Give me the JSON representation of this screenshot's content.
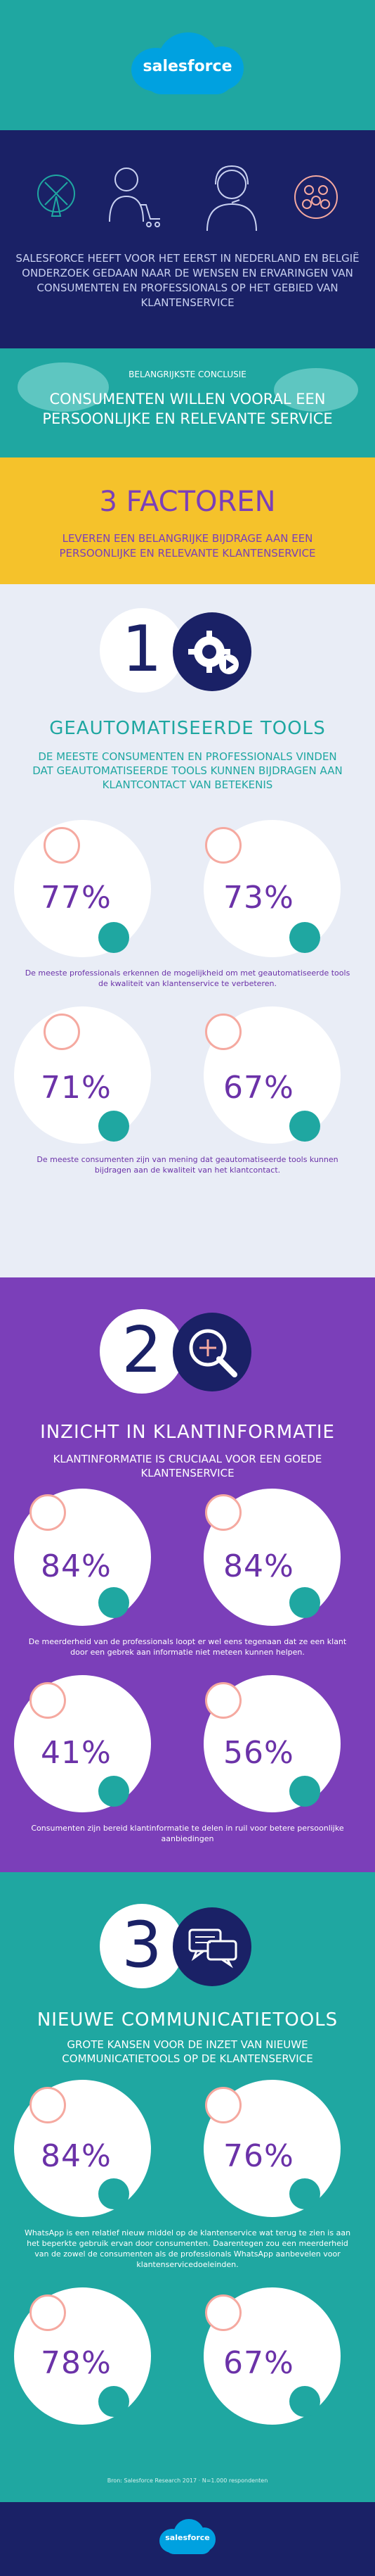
{
  "brand": "salesforce",
  "intro": {
    "text": "SALESFORCE HEEFT VOOR HET EERST IN NEDERLAND EN BELGIË ONDERZOEK GEDAAN NAAR DE WENSEN EN ERVARINGEN VAN CONSUMENTEN EN PROFESSIONALS OP HET GEBIED VAN KLANTENSERVICE"
  },
  "conclusion": {
    "label": "BELANGRIJKSTE CONCLUSIE",
    "text": "CONSUMENTEN WILLEN VOORAL EEN PERSOONLIJKE EN RELEVANTE SERVICE"
  },
  "factors": {
    "title": "3 FACTOREN",
    "text": "LEVEREN EEN BELANGRIJKE BIJDRAGE AAN EEN PERSOONLIJKE EN RELEVANTE KLANTENSERVICE"
  },
  "section1": {
    "number": "1",
    "title": "GEAUTOMATISEERDE TOOLS",
    "subtitle": "DE MEESTE CONSUMENTEN EN PROFESSIONALS VINDEN DAT GEAUTOMATISEERDE TOOLS KUNNEN BIJDRAGEN AAN KLANTCONTACT VAN BETEKENIS",
    "stats_a": [
      "77%",
      "73%"
    ],
    "caption_a": "De meeste professionals erkennen de mogelijkheid om met geautomatiseerde tools de kwaliteit van klantenservice te verbeteren.",
    "stats_b": [
      "71%",
      "67%"
    ],
    "caption_b": "De meeste consumenten zijn van mening dat geautomatiseerde tools kunnen bijdragen aan de kwaliteit van het klantcontact."
  },
  "section2": {
    "number": "2",
    "title": "INZICHT IN KLANTINFORMATIE",
    "subtitle": "KLANTINFORMATIE IS CRUCIAAL VOOR EEN GOEDE KLANTENSERVICE",
    "stats_a": [
      "84%",
      "84%"
    ],
    "caption_a": "De meerderheid van de professionals loopt er wel eens tegenaan dat ze een klant door een gebrek aan informatie niet meteen kunnen helpen.",
    "stats_b": [
      "41%",
      "56%"
    ],
    "caption_b": "Consumenten zijn bereid klantinformatie te delen in ruil voor betere persoonlijke aanbiedingen"
  },
  "section3": {
    "number": "3",
    "title": "NIEUWE COMMUNICATIETOOLS",
    "subtitle": "GROTE KANSEN VOOR DE INZET VAN NIEUWE COMMUNICATIETOOLS OP DE KLANTENSERVICE",
    "stats_a": [
      "84%",
      "76%"
    ],
    "caption_a": "WhatsApp is een relatief nieuw middel op de klantenservice wat terug te zien is aan het beperkte gebruik ervan door consumenten. Daarentegen zou een meerderheid van de zowel de consumenten als de professionals WhatsApp aanbevelen voor klantenservicedoeleinden.",
    "stats_b": [
      "78%",
      "67%"
    ]
  },
  "footer": {
    "note": "Bron: Salesforce Research 2017 · N=1.000 respondenten",
    "brand": "salesforce"
  },
  "colors": {
    "teal": "#1fa7a1",
    "navy": "#1a2166",
    "yellow": "#f5c22b",
    "purple": "#7b3fb9",
    "light": "#e9edf6",
    "accent_purple_text": "#6b32a8"
  }
}
